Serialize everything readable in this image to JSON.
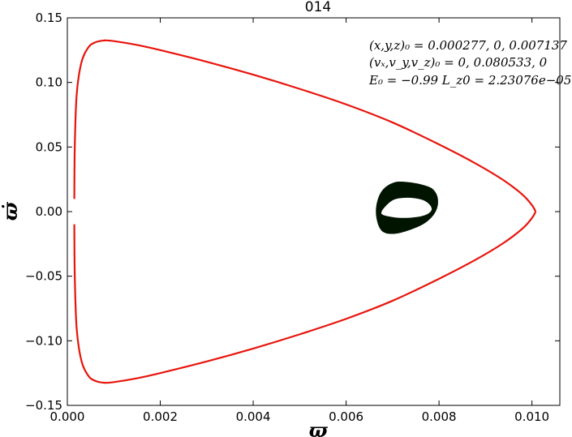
{
  "chart_data": {
    "type": "line",
    "title": "014",
    "xlabel": "ϖ",
    "ylabel": "ϖ̇",
    "xlim": [
      0.0,
      0.0106
    ],
    "ylim": [
      -0.15,
      0.15
    ],
    "xticks": [
      "0.000",
      "0.002",
      "0.004",
      "0.006",
      "0.008",
      "0.010"
    ],
    "xtick_values": [
      0.0,
      0.002,
      0.004,
      0.006,
      0.008,
      0.01
    ],
    "yticks": [
      "0.15",
      "0.10",
      "0.05",
      "0.00",
      "−0.05",
      "−0.10",
      "−0.15"
    ],
    "ytick_values": [
      0.15,
      0.1,
      0.05,
      0.0,
      -0.05,
      -0.1,
      -0.15
    ],
    "grid": false,
    "annotations": [
      "(x,y,z)₀ = 0.000277, 0, 0.007137",
      "(vₓ,v_y,v_z)₀ = 0, 0.080533, 0",
      "E₀ = −0.99  L_z0 = 2.23076e−05"
    ],
    "series": [
      {
        "color": "#e8140c",
        "style": "line",
        "x": [
          0.00015,
          0.00016,
          0.0002,
          0.0003,
          0.00045,
          0.0006,
          0.0008,
          0.001,
          0.0015,
          0.002,
          0.003,
          0.004,
          0.005,
          0.006,
          0.007,
          0.008,
          0.0088,
          0.0094,
          0.0098,
          0.01,
          0.01008
        ],
        "y": [
          0.0098,
          0.05,
          0.09,
          0.115,
          0.127,
          0.131,
          0.1325,
          0.132,
          0.129,
          0.125,
          0.116,
          0.106,
          0.095,
          0.083,
          0.069,
          0.052,
          0.037,
          0.024,
          0.013,
          0.005,
          0.0
        ],
        "mirror_y": true
      },
      {
        "color": "#001400",
        "style": "band",
        "ring": {
          "outer": {
            "x": [
              0.00705,
              0.00735,
              0.00765,
              0.00787,
              0.00797,
              0.00792,
              0.0077,
              0.00737,
              0.00703,
              0.00678,
              0.00666,
              0.00667,
              0.0068
            ],
            "y": [
              0.0225,
              0.0225,
              0.0205,
              0.017,
              0.0095,
              0.0,
              -0.0085,
              -0.014,
              -0.017,
              -0.015,
              -0.005,
              0.007,
              0.017
            ]
          },
          "inner": {
            "x": [
              0.007,
              0.00735,
              0.0077,
              0.00785,
              0.0077,
              0.00735,
              0.007,
              0.00675
            ],
            "y": [
              0.009,
              0.011,
              0.0085,
              0.002,
              -0.003,
              -0.005,
              -0.0045,
              -0.001
            ]
          }
        }
      }
    ]
  }
}
